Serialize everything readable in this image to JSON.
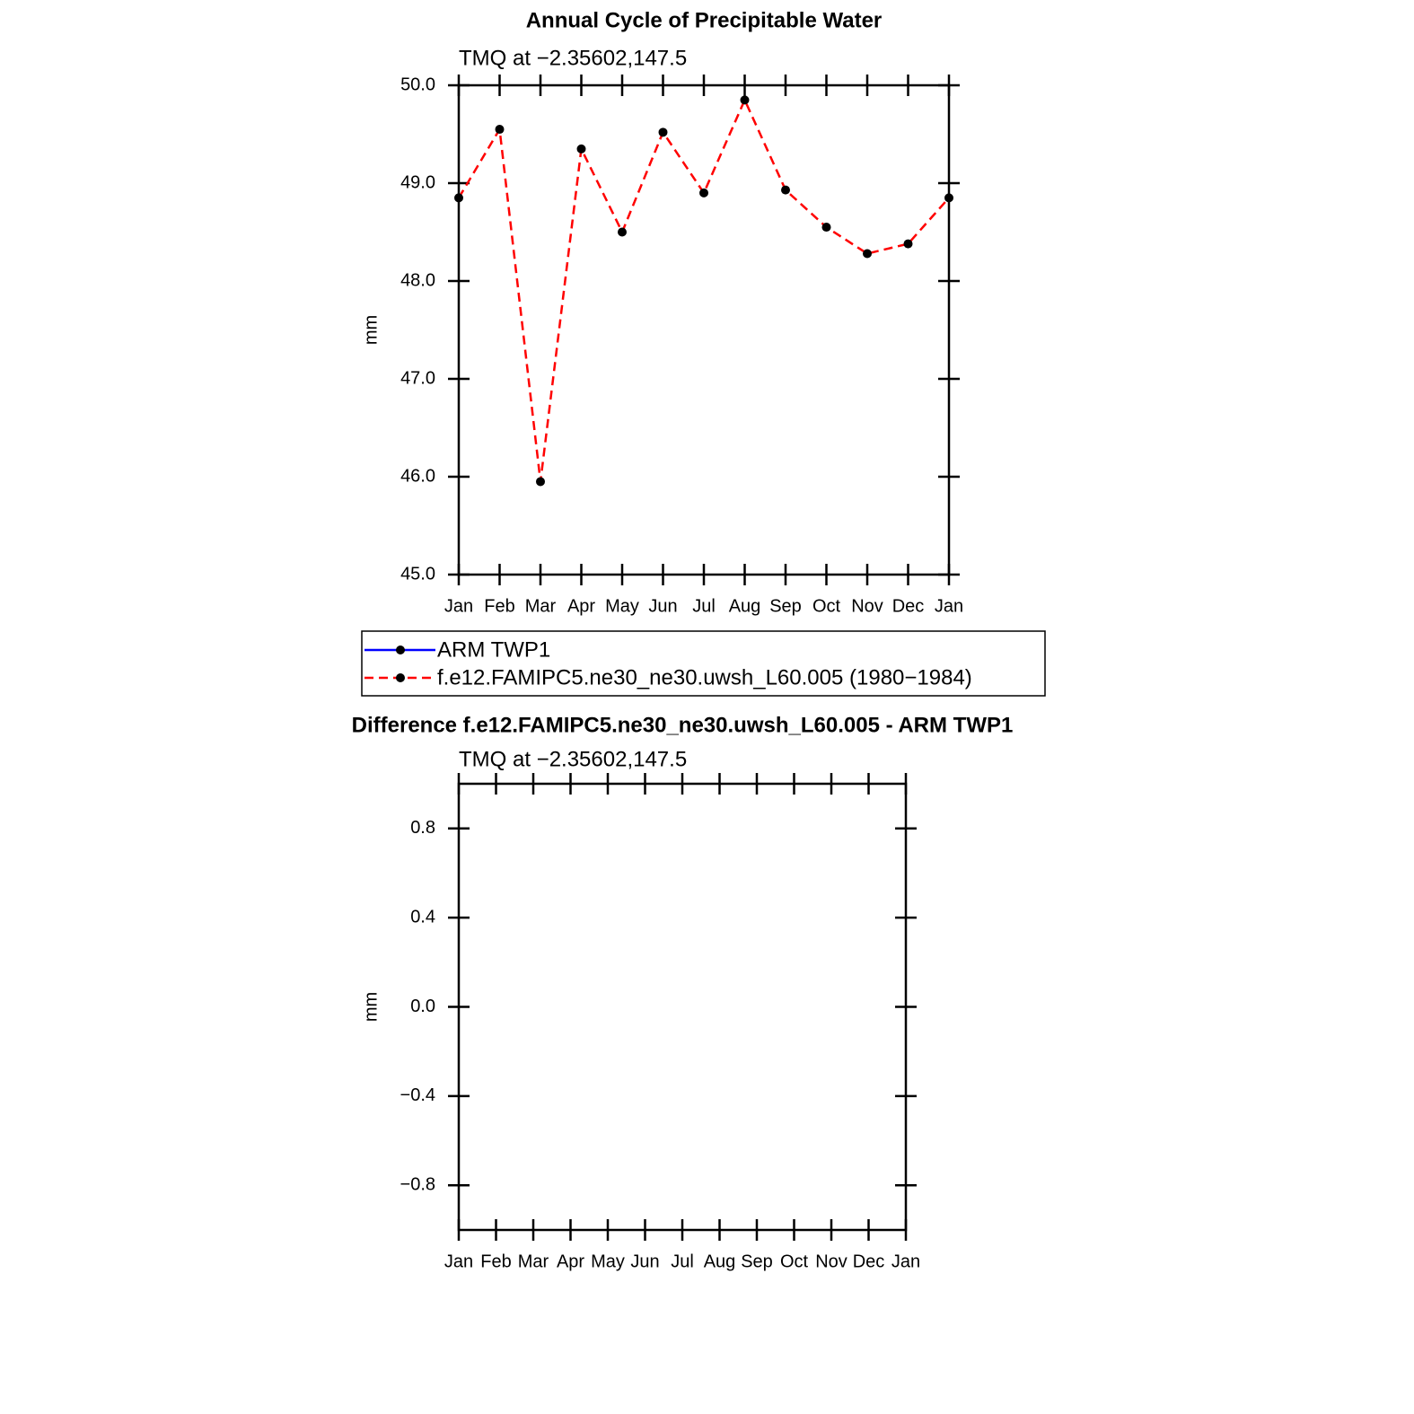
{
  "chart_data": [
    {
      "type": "line",
      "title": "Annual Cycle of Precipitable Water",
      "subtitle": "TMQ at −2.35602,147.5",
      "ylabel": "mm",
      "categories": [
        "Jan",
        "Feb",
        "Mar",
        "Apr",
        "May",
        "Jun",
        "Jul",
        "Aug",
        "Sep",
        "Oct",
        "Nov",
        "Dec",
        "Jan"
      ],
      "series": [
        {
          "name": "ARM TWP1",
          "color": "#0000ff",
          "line_style": "solid",
          "marker": "dot",
          "values": [
            null,
            null,
            null,
            null,
            null,
            null,
            null,
            null,
            null,
            null,
            null,
            null,
            null
          ]
        },
        {
          "name": "f.e12.FAMIPC5.ne30_ne30.uwsh_L60.005 (1980−1984)",
          "color": "#ff0000",
          "line_style": "dashed",
          "marker": "dot",
          "values": [
            48.85,
            49.55,
            45.95,
            49.35,
            48.5,
            49.52,
            48.9,
            49.85,
            48.93,
            48.55,
            48.28,
            48.38,
            48.85
          ]
        }
      ],
      "ylim": [
        45,
        50
      ],
      "yticks": [
        {
          "value": 45,
          "label": "45.0"
        },
        {
          "value": 46,
          "label": "46.0"
        },
        {
          "value": 47,
          "label": "47.0"
        },
        {
          "value": 48,
          "label": "48.0"
        },
        {
          "value": 49,
          "label": "49.0"
        },
        {
          "value": 50,
          "label": "50.0"
        }
      ],
      "legend": true
    },
    {
      "type": "line",
      "title": "Difference f.e12.FAMIPC5.ne30_ne30.uwsh_L60.005 - ARM TWP1",
      "subtitle": "TMQ at −2.35602,147.5",
      "ylabel": "mm",
      "categories": [
        "Jan",
        "Feb",
        "Mar",
        "Apr",
        "May",
        "Jun",
        "Jul",
        "Aug",
        "Sep",
        "Oct",
        "Nov",
        "Dec",
        "Jan"
      ],
      "series": [],
      "ylim": [
        -1,
        1
      ],
      "yticks": [
        {
          "value": -0.8,
          "label": "−0.8"
        },
        {
          "value": -0.4,
          "label": "−0.4"
        },
        {
          "value": 0,
          "label": "0.0"
        },
        {
          "value": 0.4,
          "label": "0.4"
        },
        {
          "value": 0.8,
          "label": "0.8"
        }
      ],
      "legend": false
    }
  ]
}
